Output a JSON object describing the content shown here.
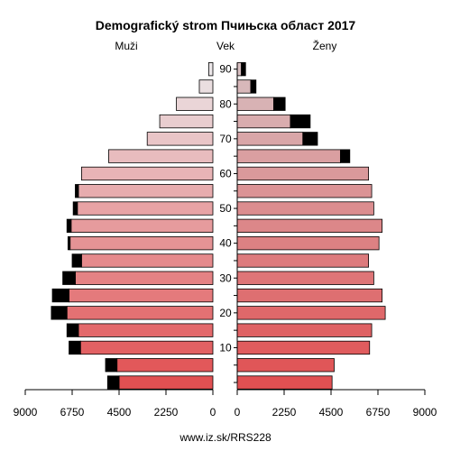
{
  "page": {
    "title": "Demografický strom Пчињска област 2017",
    "footer": "www.iz.sk/RRS228"
  },
  "chart_data": {
    "type": "bar",
    "orientation": "horizontal-population-pyramid",
    "left_label": "Muži",
    "center_label": "Vek",
    "right_label": "Ženy",
    "x_max": 9000,
    "x_ticks": [
      0,
      2250,
      4500,
      6750,
      9000
    ],
    "age_ticks": [
      10,
      20,
      30,
      40,
      50,
      60,
      70,
      80,
      90
    ],
    "age_groups": [
      "0-4",
      "5-9",
      "10-14",
      "15-19",
      "20-24",
      "25-29",
      "30-34",
      "35-39",
      "40-44",
      "45-49",
      "50-54",
      "55-59",
      "60-64",
      "65-69",
      "70-74",
      "75-79",
      "80-84",
      "85-89",
      "90+"
    ],
    "male_base": [
      4500,
      4600,
      6350,
      6450,
      7000,
      6900,
      6600,
      6300,
      6850,
      6800,
      6500,
      6450,
      6300,
      5000,
      3150,
      2550,
      1750,
      650,
      200
    ],
    "male_extra": [
      550,
      550,
      550,
      550,
      750,
      800,
      600,
      450,
      100,
      200,
      200,
      150,
      0,
      0,
      0,
      0,
      0,
      0,
      0
    ],
    "female_base": [
      4550,
      4650,
      6350,
      6450,
      7100,
      6950,
      6550,
      6300,
      6800,
      6950,
      6550,
      6450,
      6300,
      4950,
      3150,
      2550,
      1750,
      650,
      200
    ],
    "female_extra": [
      0,
      0,
      0,
      0,
      0,
      0,
      0,
      0,
      0,
      0,
      0,
      0,
      0,
      450,
      700,
      950,
      550,
      250,
      200
    ]
  }
}
